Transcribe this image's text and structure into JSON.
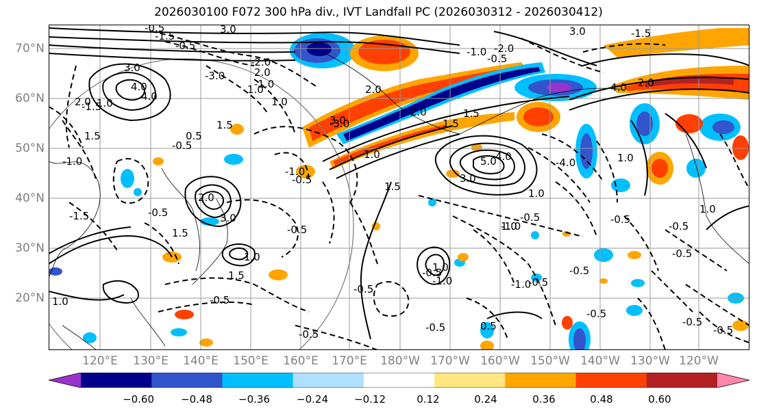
{
  "title": "2026030100 F072 300 hPa div., IVT Landfall PC (2026030312 - 2026030412)",
  "lat_axis": {
    "labels": [
      "70°N",
      "60°N",
      "50°N",
      "40°N",
      "30°N",
      "20°N"
    ]
  },
  "lon_axis": {
    "labels": [
      "120°E",
      "130°E",
      "140°E",
      "150°E",
      "160°E",
      "170°E",
      "180°W",
      "170°W",
      "160°W",
      "150°W",
      "140°W",
      "130°W",
      "120°W"
    ]
  },
  "colorbar": {
    "ticks": [
      "−0.60",
      "−0.48",
      "−0.36",
      "−0.24",
      "−0.12",
      "0.12",
      "0.24",
      "0.36",
      "0.48",
      "0.60"
    ],
    "colors": [
      "#9933cc",
      "#00008b",
      "#3355cc",
      "#00bfff",
      "#b0e0ff",
      "#ffffff",
      "#ffe680",
      "#ffa500",
      "#ff4000",
      "#b22222",
      "#ff88aa"
    ]
  },
  "contour_labels": {
    "solid": [
      "3.0",
      "4.0",
      "2.0",
      "1.5",
      "1.0",
      "1.5",
      "4.0",
      "2.0",
      "1.0",
      "0.5",
      "3.0",
      "2.0",
      "1.5",
      "1.0",
      "3.0",
      "2.0",
      "1.0",
      "1.5",
      "5.0",
      "4.0",
      "3.0",
      "1.5",
      "1.0",
      "1.0",
      "1.5",
      "1.0",
      "0.5",
      "2.0",
      "3.0",
      "4.0",
      "2.0",
      "1.0",
      "1.0",
      "3.0",
      "1.0",
      "1.5",
      "1.0"
    ],
    "dashed": [
      "-0.5",
      "-1.5",
      "-0.5",
      "-3.0",
      "-2.0",
      "-1.0",
      "-0.5",
      "-1.0",
      "-1.5",
      "-0.5",
      "-0.5",
      "-1.0",
      "-0.5",
      "-3.0",
      "-4.0",
      "-0.5",
      "-0.5",
      "-0.5",
      "-1.0",
      "-0.5",
      "-0.5",
      "-0.5",
      "-0.5",
      "-1.0",
      "-0.5",
      "-0.5",
      "-0.5",
      "-1.5",
      "-1.0",
      "-0.5",
      "-2.0",
      "-0.5",
      "-0.5",
      "-0.5",
      "-1.0",
      "-0.5",
      "-1.5"
    ]
  }
}
